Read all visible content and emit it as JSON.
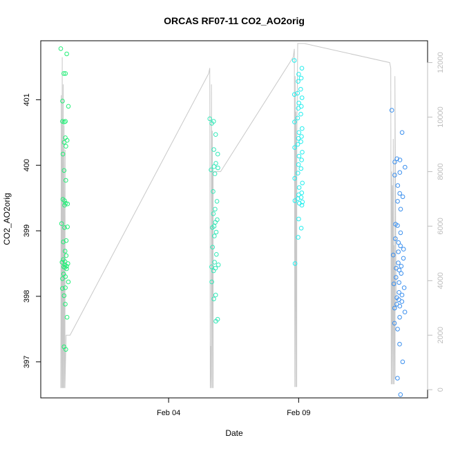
{
  "chart_data": {
    "type": "scatter",
    "title": "ORCAS RF07-11 CO2_AO2orig",
    "xlabel": "Date",
    "ylabel": "CO2_AO2orig",
    "xlim": [
      "2016-01-30T02:00",
      "2016-02-13T23:00"
    ],
    "ylim": [
      396.45,
      401.9
    ],
    "ylim_right": [
      -300,
      12800
    ],
    "x_ticks": [
      {
        "date": "2016-02-04T00:00",
        "label": "Feb 04"
      },
      {
        "date": "2016-02-09T00:00",
        "label": "Feb 09"
      }
    ],
    "y_ticks": [
      397,
      398,
      399,
      400,
      401
    ],
    "y_ticks_right": [
      0,
      2000,
      4000,
      6000,
      8000,
      10000,
      12000
    ],
    "grid": false,
    "colors": {
      "line": "#c8c8c8",
      "right_axis": "#bdbdbd",
      "flight_points": [
        "#22ee77",
        "#33e8b8",
        "#22eeee",
        "#3a8fee"
      ]
    },
    "series": [
      {
        "flight": 1,
        "color": "#22ee77",
        "time_range": [
          "2016-01-30T20:30",
          "2016-01-31T04:00"
        ],
        "y": [
          401.78,
          401.7,
          401.4,
          401.4,
          400.98,
          400.9,
          400.67,
          400.67,
          400.66,
          400.42,
          400.38,
          400.35,
          400.29,
          400.17,
          399.92,
          399.77,
          399.48,
          399.46,
          399.42,
          399.41,
          399.39,
          399.11,
          399.06,
          399.05,
          398.85,
          398.83,
          398.69,
          398.62,
          398.56,
          398.53,
          398.52,
          398.5,
          398.48,
          398.46,
          398.45,
          398.44,
          398.42,
          398.34,
          398.3,
          398.27,
          398.22,
          398.13,
          398.12,
          398.01,
          397.88,
          397.68,
          397.23,
          397.19
        ]
      },
      {
        "flight": 2,
        "color": "#33e8b8",
        "time_range": [
          "2016-02-05T14:00",
          "2016-02-05T23:00"
        ],
        "y": [
          400.71,
          400.67,
          400.64,
          400.47,
          400.24,
          400.17,
          400.03,
          399.98,
          399.96,
          399.93,
          399.87,
          399.6,
          399.45,
          399.33,
          399.26,
          399.17,
          399.13,
          399.07,
          399.05,
          398.98,
          398.92,
          398.75,
          398.64,
          398.52,
          398.48,
          398.45,
          398.43,
          398.39,
          398.22,
          398.02,
          397.96,
          397.65,
          397.62
        ]
      },
      {
        "flight": 3,
        "color": "#22eeee",
        "time_range": [
          "2016-02-08T20:00",
          "2016-02-09T05:00"
        ],
        "y": [
          401.6,
          401.48,
          401.39,
          401.33,
          401.28,
          401.16,
          401.1,
          401.08,
          401.03,
          400.95,
          400.9,
          400.87,
          400.78,
          400.72,
          400.66,
          400.56,
          400.5,
          400.44,
          400.41,
          400.36,
          400.32,
          400.27,
          400.2,
          400.14,
          400.08,
          400.01,
          399.95,
          399.88,
          399.8,
          399.73,
          399.66,
          399.58,
          399.55,
          399.51,
          399.49,
          399.46,
          399.44,
          399.42,
          399.39,
          399.18,
          399.04,
          398.9,
          398.5
        ]
      },
      {
        "flight": 4,
        "color": "#3a8fee",
        "time_range": [
          "2016-02-12T14:00",
          "2016-02-13T03:00"
        ],
        "y": [
          400.84,
          400.5,
          400.1,
          400.08,
          400.05,
          399.97,
          399.89,
          399.85,
          399.69,
          399.57,
          399.52,
          399.45,
          399.33,
          399.1,
          399.08,
          398.97,
          398.88,
          398.82,
          398.77,
          398.72,
          398.68,
          398.63,
          398.58,
          398.51,
          398.46,
          398.43,
          398.4,
          398.35,
          398.29,
          398.21,
          398.19,
          398.13,
          398.06,
          398.02,
          397.98,
          397.95,
          397.92,
          397.88,
          397.85,
          397.82,
          397.76,
          397.68,
          397.59,
          397.5,
          397.27,
          397.0,
          396.75,
          396.5
        ]
      }
    ],
    "altitude_line": {
      "axis": "right",
      "segments": [
        {
          "t": "2016-01-30T20:30",
          "alt": [
            60,
            10800,
            60,
            12200,
            60,
            11200,
            60,
            9700,
            60,
            8800,
            60,
            2000
          ]
        },
        {
          "t_start": "2016-01-31T05:00",
          "t_end": "2016-02-05T13:00",
          "alt_start": 2000,
          "alt_end": 11600
        },
        {
          "t": "2016-02-05T14:00",
          "alt": [
            11800,
            60,
            1600,
            60,
            11200,
            60,
            9500,
            60,
            8000
          ]
        },
        {
          "t_start": "2016-02-06T00:00",
          "t_end": "2016-02-08T19:00",
          "alt_start": 8000,
          "alt_end": 12200
        },
        {
          "t": "2016-02-08T20:00",
          "alt": [
            12500,
            100,
            11500,
            100,
            10200,
            100,
            9000,
            12700
          ]
        },
        {
          "t_start": "2016-02-09T05:00",
          "t_end": "2016-02-12T12:00",
          "alt_start": 12700,
          "alt_end": 12000
        },
        {
          "t": "2016-02-12T13:00",
          "alt": [
            11800,
            200,
            8000,
            200,
            7500,
            200,
            9200,
            200,
            5300,
            400,
            11500,
            3000
          ]
        }
      ]
    }
  }
}
